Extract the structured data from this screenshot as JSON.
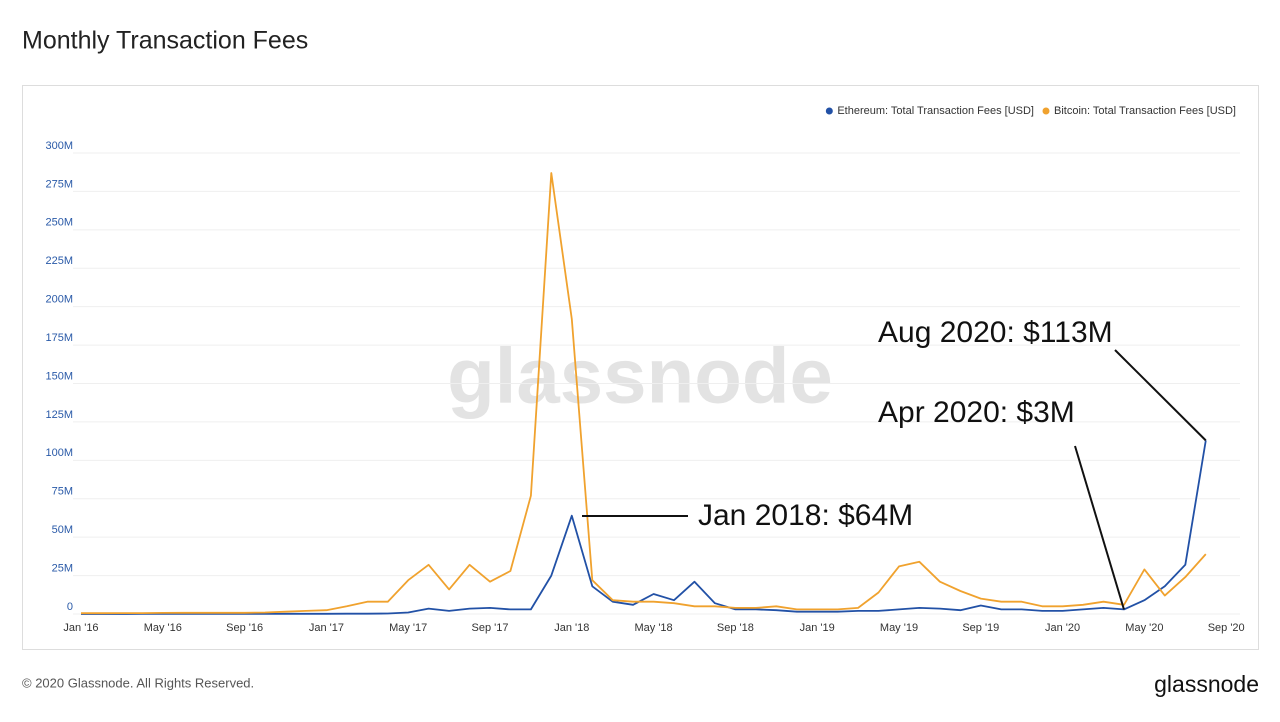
{
  "chart_data": {
    "type": "line",
    "title": "Monthly Transaction Fees",
    "categories": [
      "Jan '16",
      null,
      null,
      null,
      "May '16",
      null,
      null,
      null,
      "Sep '16",
      null,
      null,
      null,
      "Jan '17",
      null,
      null,
      null,
      "May '17",
      null,
      null,
      null,
      "Sep '17",
      null,
      null,
      null,
      "Jan '18",
      null,
      null,
      null,
      "May '18",
      null,
      null,
      null,
      "Sep '18",
      null,
      null,
      null,
      "Jan '19",
      null,
      null,
      null,
      "May '19",
      null,
      null,
      null,
      "Sep '19",
      null,
      null,
      null,
      "Jan '20",
      null,
      null,
      null,
      "May '20",
      null,
      null,
      null,
      "Sep '20"
    ],
    "series": [
      {
        "name": "Ethereum: Total Transaction Fees [USD]",
        "color": "#2251a6",
        "values": [
          10000,
          10000,
          20000,
          50000,
          100000,
          100000,
          100000,
          100000,
          100000,
          100000,
          100000,
          100000,
          100000,
          200000,
          200000,
          300000,
          1000000,
          3500000,
          2000000,
          3500000,
          4000000,
          3000000,
          3000000,
          25000000,
          64000000,
          18000000,
          8000000,
          6000000,
          13000000,
          9000000,
          21000000,
          7000000,
          3000000,
          3000000,
          2500000,
          1500000,
          1500000,
          1500000,
          2000000,
          2000000,
          3000000,
          4000000,
          3500000,
          2500000,
          5500000,
          3000000,
          3000000,
          2000000,
          2000000,
          3000000,
          4000000,
          3000000,
          9000000,
          18000000,
          32000000,
          113000000,
          null
        ]
      },
      {
        "name": "Bitcoin: Total Transaction Fees [USD]",
        "color": "#f0a22e",
        "values": [
          500000,
          500000,
          600000,
          600000,
          700000,
          800000,
          800000,
          800000,
          800000,
          1000000,
          1500000,
          2000000,
          2500000,
          5000000,
          8000000,
          8000000,
          22000000,
          32000000,
          16000000,
          32000000,
          21000000,
          28000000,
          77000000,
          287000000,
          192000000,
          22000000,
          9000000,
          8000000,
          8000000,
          7000000,
          5000000,
          5000000,
          4000000,
          4000000,
          5000000,
          3000000,
          3000000,
          3000000,
          4000000,
          14000000,
          31000000,
          34000000,
          21000000,
          15000000,
          10000000,
          8000000,
          8000000,
          5000000,
          5000000,
          6000000,
          8000000,
          6000000,
          29000000,
          12000000,
          24000000,
          39000000,
          null
        ]
      }
    ],
    "ylim": [
      0,
      300000000
    ],
    "yticks": [
      0,
      {
        "value": 25000000,
        "label": "25M"
      },
      {
        "value": 50000000,
        "label": "50M"
      },
      {
        "value": 75000000,
        "label": "75M"
      },
      {
        "value": 100000000,
        "label": "100M"
      },
      {
        "value": 125000000,
        "label": "125M"
      },
      {
        "value": 150000000,
        "label": "150M"
      },
      {
        "value": 175000000,
        "label": "175M"
      },
      {
        "value": 200000000,
        "label": "200M"
      },
      {
        "value": 225000000,
        "label": "225M"
      },
      {
        "value": 250000000,
        "label": "250M"
      },
      {
        "value": 275000000,
        "label": "275M"
      },
      {
        "value": 300000000,
        "label": "300M"
      }
    ],
    "grid": true,
    "legend": "top-right",
    "annotations": [
      {
        "text": "Jan 2018: $64M"
      },
      {
        "text": "Apr 2020: $3M"
      },
      {
        "text": "Aug 2020: $113M"
      }
    ]
  },
  "watermark": "glassnode",
  "footer": "© 2020 Glassnode. All Rights Reserved.",
  "logo": "glassnode"
}
